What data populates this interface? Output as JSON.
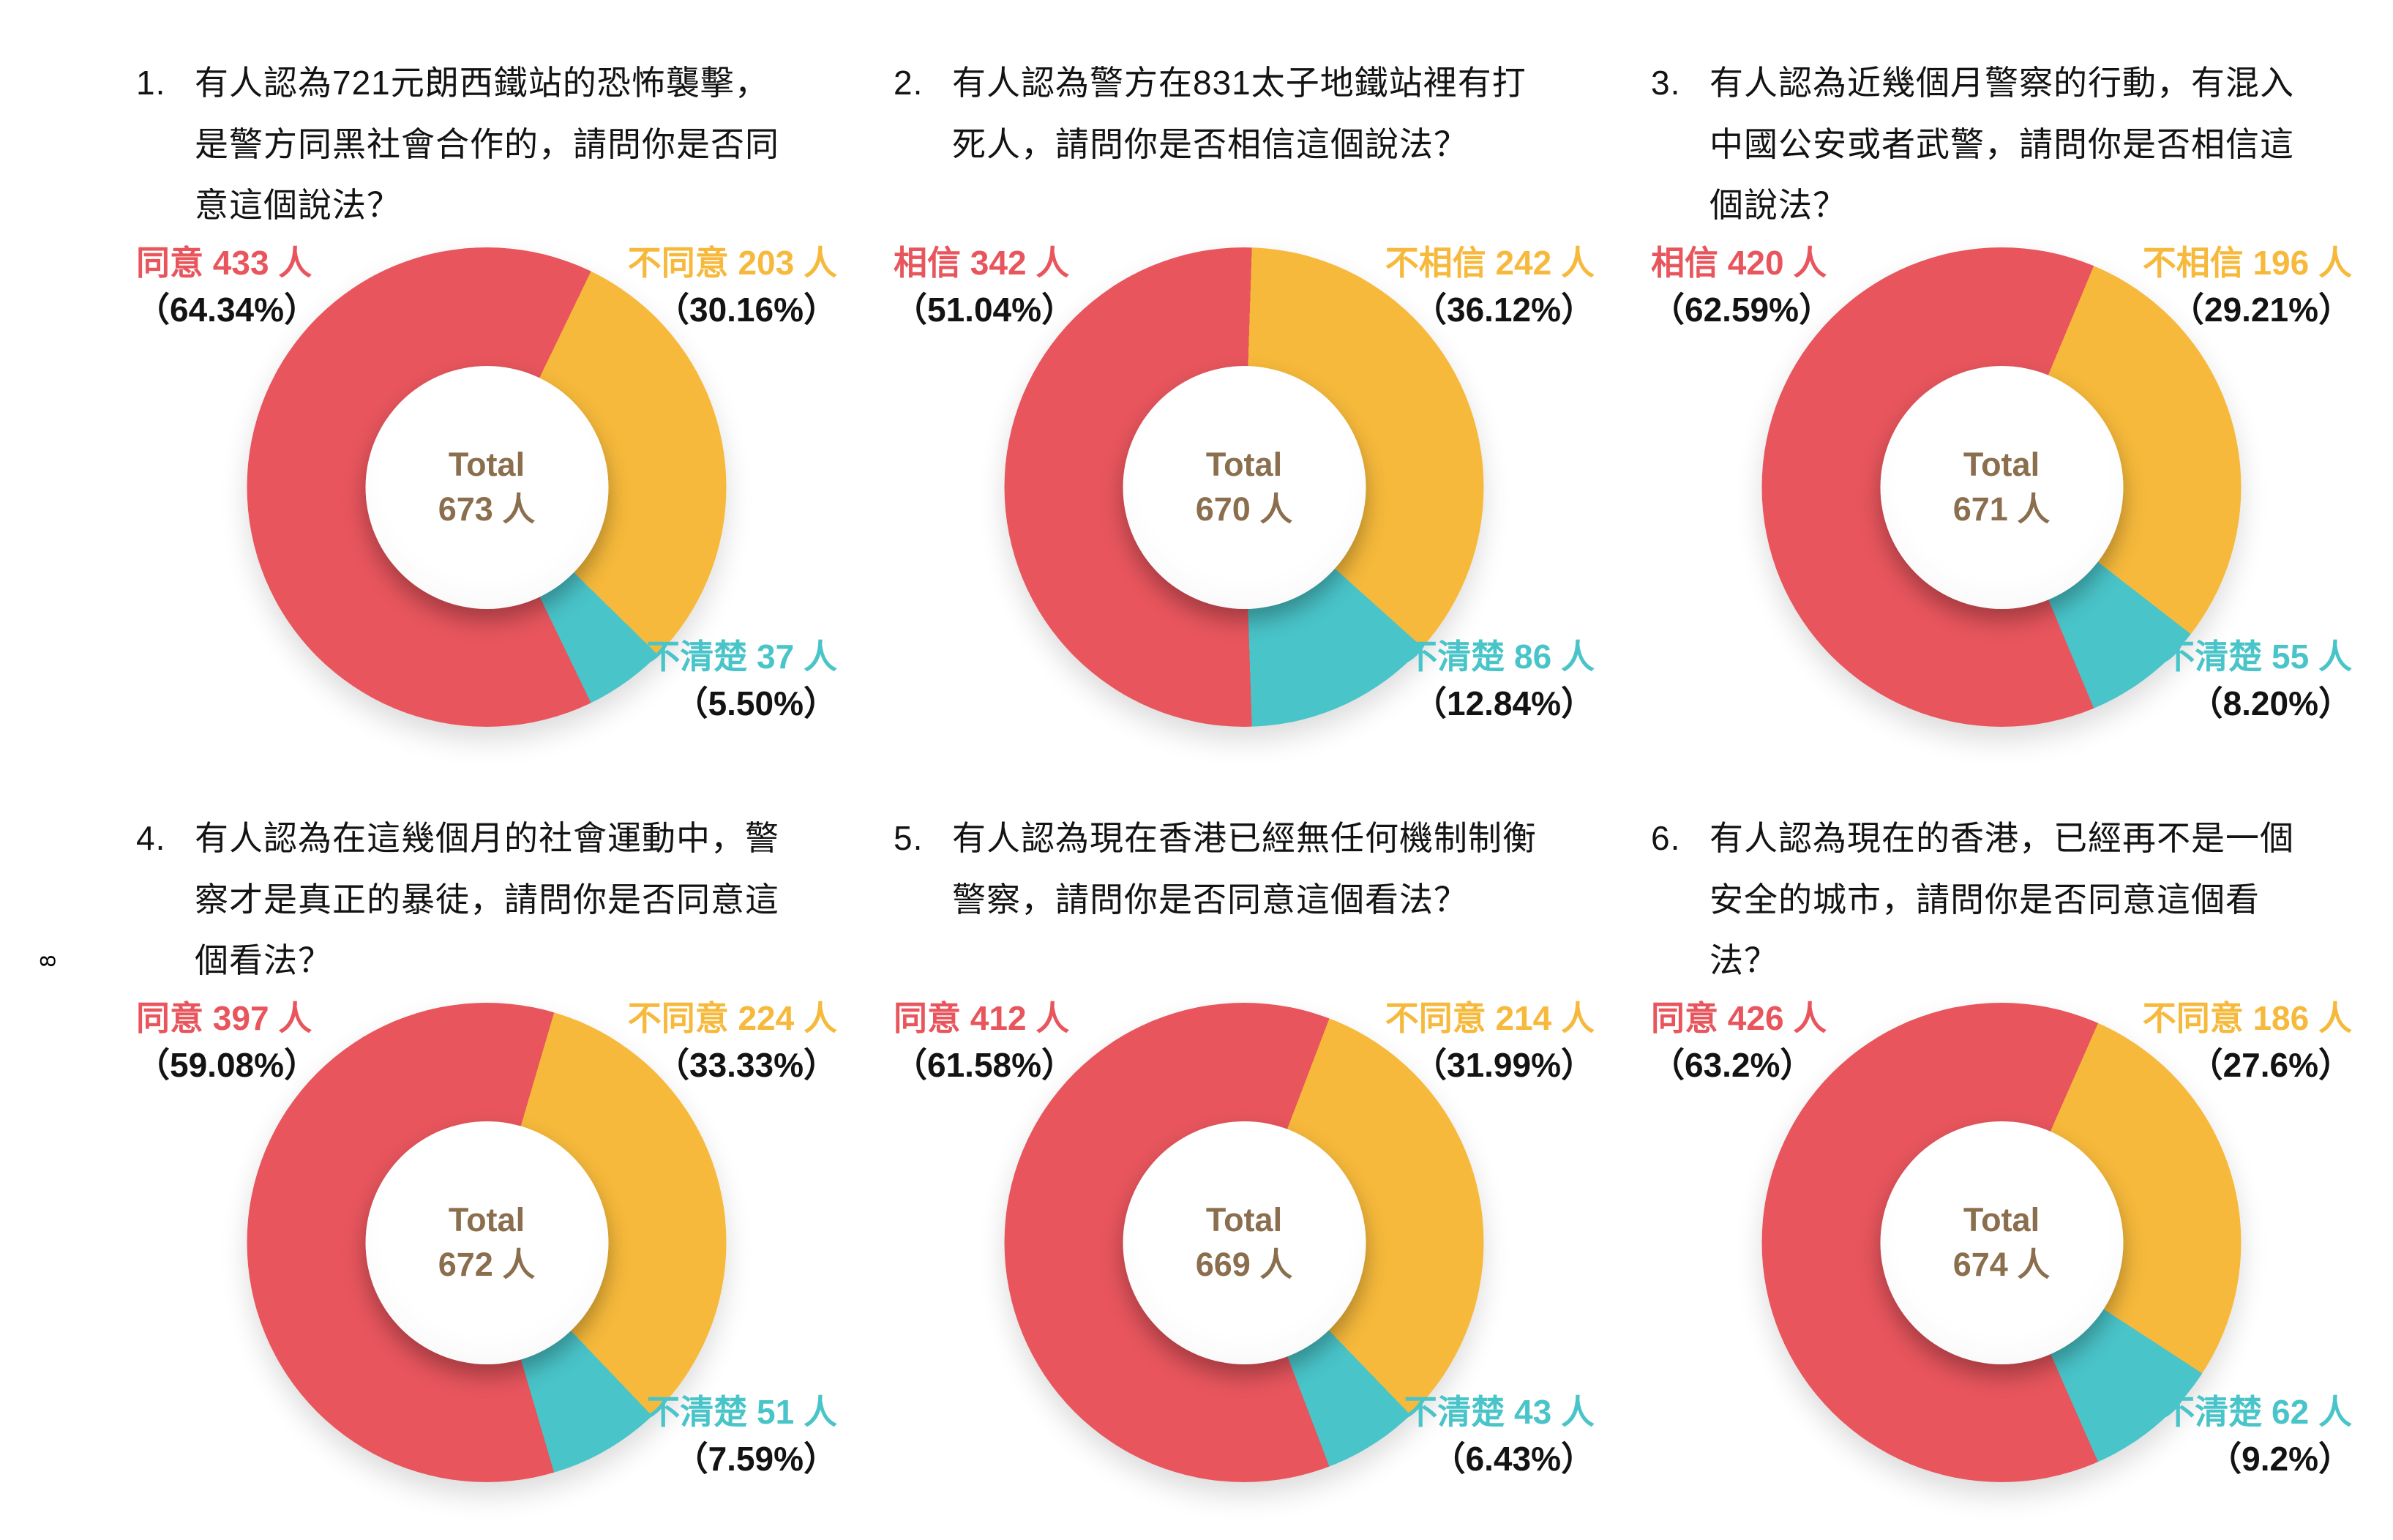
{
  "page": {
    "number": "8"
  },
  "colors": {
    "agree": "#E8555D",
    "disagree": "#F6B93B",
    "unclear": "#49C4C9",
    "total_text": "#8A6E4E",
    "percent_text": "#131313"
  },
  "chart_data": [
    {
      "type": "pie",
      "number": "1.",
      "question": "有人認為721元朗西鐵站的恐怖襲擊，是警方同黑社會合作的，請問你是否同意這個說法？",
      "total_label": "Total",
      "total_text": "673 人",
      "total": 673,
      "segments": [
        {
          "key": "agree",
          "label": "同意",
          "count": 433,
          "count_text": "同意 433 人",
          "pct": 64.34,
          "pct_text": "（64.34%）"
        },
        {
          "key": "disagree",
          "label": "不同意",
          "count": 203,
          "count_text": "不同意 203 人",
          "pct": 30.16,
          "pct_text": "（30.16%）"
        },
        {
          "key": "unclear",
          "label": "不清楚",
          "count": 37,
          "count_text": "不清楚 37 人",
          "pct": 5.5,
          "pct_text": "（5.50%）"
        }
      ]
    },
    {
      "type": "pie",
      "number": "2.",
      "question": "有人認為警方在831太子地鐵站裡有打死人，請問你是否相信這個說法？",
      "total_label": "Total",
      "total_text": "670 人",
      "total": 670,
      "segments": [
        {
          "key": "agree",
          "label": "相信",
          "count": 342,
          "count_text": "相信 342 人",
          "pct": 51.04,
          "pct_text": "（51.04%）"
        },
        {
          "key": "disagree",
          "label": "不相信",
          "count": 242,
          "count_text": "不相信 242 人",
          "pct": 36.12,
          "pct_text": "（36.12%）"
        },
        {
          "key": "unclear",
          "label": "不清楚",
          "count": 86,
          "count_text": "不清楚 86 人",
          "pct": 12.84,
          "pct_text": "（12.84%）"
        }
      ]
    },
    {
      "type": "pie",
      "number": "3.",
      "question": "有人認為近幾個月警察的行動，有混入中國公安或者武警，請問你是否相信這個說法？",
      "total_label": "Total",
      "total_text": "671 人",
      "total": 671,
      "segments": [
        {
          "key": "agree",
          "label": "相信",
          "count": 420,
          "count_text": "相信 420 人",
          "pct": 62.59,
          "pct_text": "（62.59%）"
        },
        {
          "key": "disagree",
          "label": "不相信",
          "count": 196,
          "count_text": "不相信 196 人",
          "pct": 29.21,
          "pct_text": "（29.21%）"
        },
        {
          "key": "unclear",
          "label": "不清楚",
          "count": 55,
          "count_text": "不清楚 55 人",
          "pct": 8.2,
          "pct_text": "（8.20%）"
        }
      ]
    },
    {
      "type": "pie",
      "number": "4.",
      "question": "有人認為在這幾個月的社會運動中，警察才是真正的暴徒，請問你是否同意這個看法？",
      "total_label": "Total",
      "total_text": "672 人",
      "total": 672,
      "segments": [
        {
          "key": "agree",
          "label": "同意",
          "count": 397,
          "count_text": "同意 397 人",
          "pct": 59.08,
          "pct_text": "（59.08%）"
        },
        {
          "key": "disagree",
          "label": "不同意",
          "count": 224,
          "count_text": "不同意 224 人",
          "pct": 33.33,
          "pct_text": "（33.33%）"
        },
        {
          "key": "unclear",
          "label": "不清楚",
          "count": 51,
          "count_text": "不清楚 51 人",
          "pct": 7.59,
          "pct_text": "（7.59%）"
        }
      ]
    },
    {
      "type": "pie",
      "number": "5.",
      "question": "有人認為現在香港已經無任何機制制衡警察，請問你是否同意這個看法？",
      "total_label": "Total",
      "total_text": "669 人",
      "total": 669,
      "segments": [
        {
          "key": "agree",
          "label": "同意",
          "count": 412,
          "count_text": "同意 412 人",
          "pct": 61.58,
          "pct_text": "（61.58%）"
        },
        {
          "key": "disagree",
          "label": "不同意",
          "count": 214,
          "count_text": "不同意 214 人",
          "pct": 31.99,
          "pct_text": "（31.99%）"
        },
        {
          "key": "unclear",
          "label": "不清楚",
          "count": 43,
          "count_text": "不清楚 43 人",
          "pct": 6.43,
          "pct_text": "（6.43%）"
        }
      ]
    },
    {
      "type": "pie",
      "number": "6.",
      "question": "有人認為現在的香港，已經再不是一個安全的城市，請問你是否同意這個看法？",
      "total_label": "Total",
      "total_text": "674 人",
      "total": 674,
      "segments": [
        {
          "key": "agree",
          "label": "同意",
          "count": 426,
          "count_text": "同意 426 人",
          "pct": 63.2,
          "pct_text": "（63.2%）"
        },
        {
          "key": "disagree",
          "label": "不同意",
          "count": 186,
          "count_text": "不同意 186 人",
          "pct": 27.6,
          "pct_text": "（27.6%）"
        },
        {
          "key": "unclear",
          "label": "不清楚",
          "count": 62,
          "count_text": "不清楚 62 人",
          "pct": 9.2,
          "pct_text": "（9.2%）"
        }
      ]
    }
  ]
}
